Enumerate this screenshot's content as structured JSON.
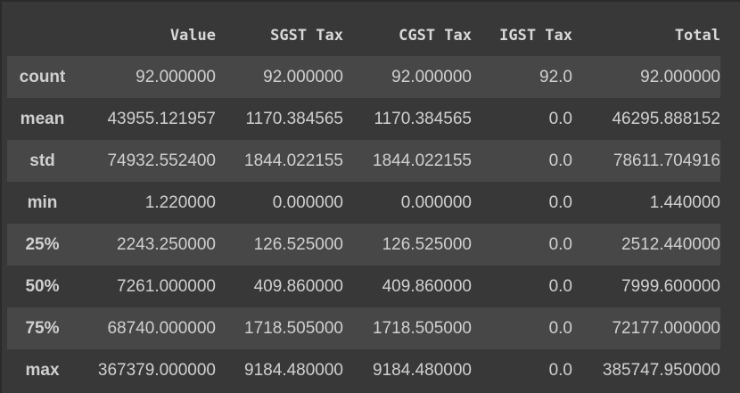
{
  "table": {
    "index_header": "",
    "columns": [
      "Value",
      "SGST Tax",
      "CGST Tax",
      "IGST Tax",
      "Total"
    ],
    "rows": [
      {
        "label": "count",
        "values": [
          "92.000000",
          "92.000000",
          "92.000000",
          "92.0",
          "92.000000"
        ]
      },
      {
        "label": "mean",
        "values": [
          "43955.121957",
          "1170.384565",
          "1170.384565",
          "0.0",
          "46295.888152"
        ]
      },
      {
        "label": "std",
        "values": [
          "74932.552400",
          "1844.022155",
          "1844.022155",
          "0.0",
          "78611.704916"
        ]
      },
      {
        "label": "min",
        "values": [
          "1.220000",
          "0.000000",
          "0.000000",
          "0.0",
          "1.440000"
        ]
      },
      {
        "label": "25%",
        "values": [
          "2243.250000",
          "126.525000",
          "126.525000",
          "0.0",
          "2512.440000"
        ]
      },
      {
        "label": "50%",
        "values": [
          "7261.000000",
          "409.860000",
          "409.860000",
          "0.0",
          "7999.600000"
        ]
      },
      {
        "label": "75%",
        "values": [
          "68740.000000",
          "1718.505000",
          "1718.505000",
          "0.0",
          "72177.000000"
        ]
      },
      {
        "label": "max",
        "values": [
          "367379.000000",
          "9184.480000",
          "9184.480000",
          "0.0",
          "385747.950000"
        ]
      }
    ]
  },
  "colors": {
    "background": "#383838",
    "row_stripe": "#474747",
    "text": "#d0d0d0"
  }
}
